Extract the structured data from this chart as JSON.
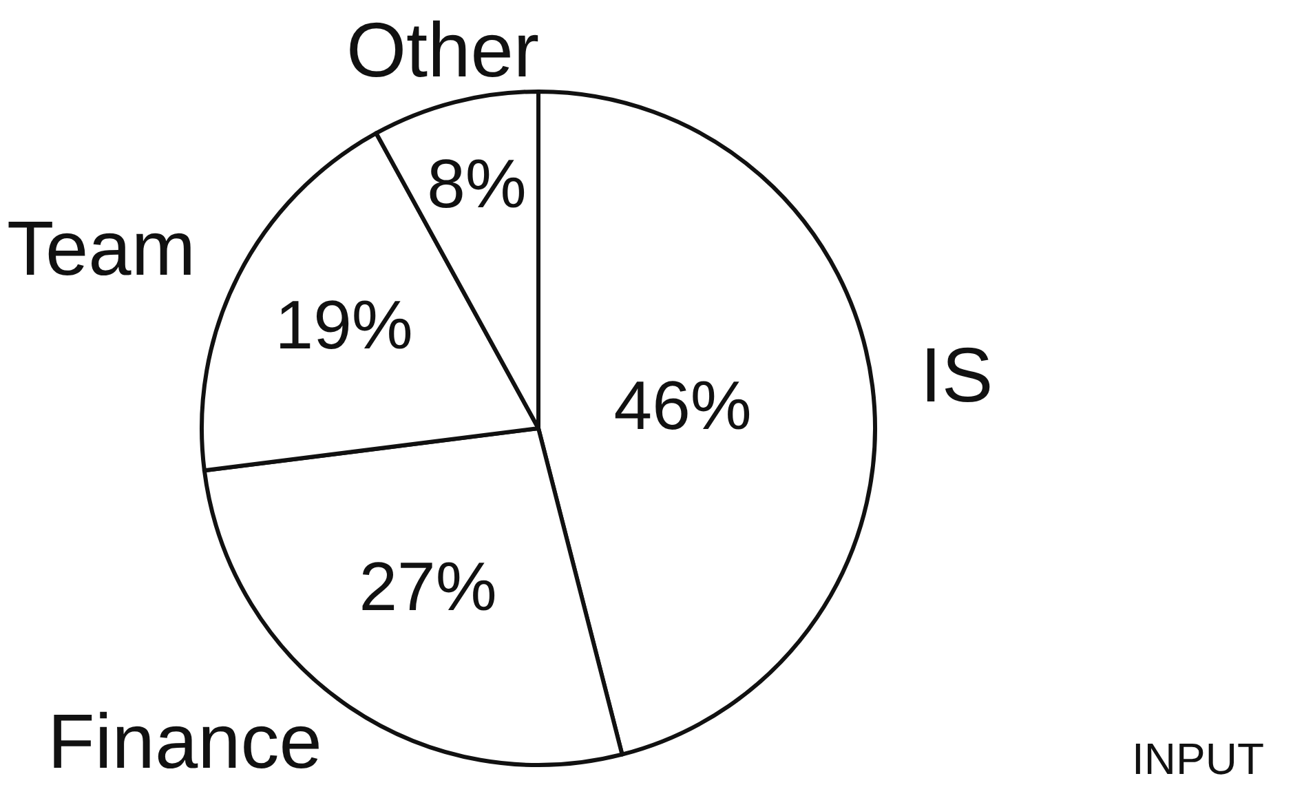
{
  "chart_data": {
    "type": "pie",
    "categories": [
      "IS",
      "Finance",
      "Team",
      "Other"
    ],
    "values": [
      46,
      27,
      19,
      8
    ],
    "colors": [
      "#ffffff",
      "#ffffff",
      "#ffffff",
      "#ffffff"
    ],
    "value_labels": [
      "46%",
      "27%",
      "19%",
      "8%"
    ],
    "annotations": [
      "INPUT"
    ]
  }
}
